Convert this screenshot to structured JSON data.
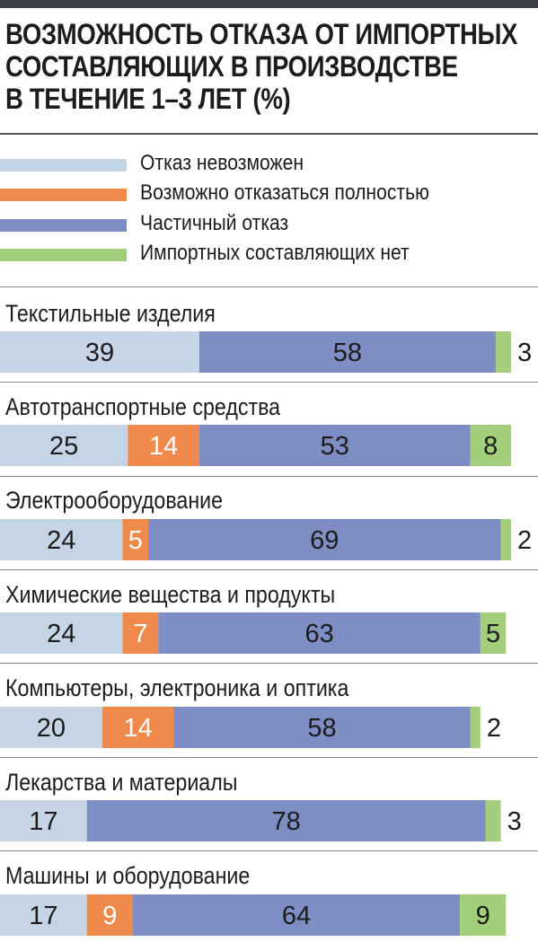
{
  "title": {
    "line1": "ВОЗМОЖНОСТЬ ОТКАЗА ОТ ИМПОРТНЫХ",
    "line2": "СОСТАВЛЯЮЩИХ В ПРОИЗВОДСТВЕ",
    "line3": "В ТЕЧЕНИЕ 1–3 ЛЕТ (%)"
  },
  "colors": {
    "impossible": "#c5d5e6",
    "full": "#f08a4c",
    "partial": "#7e8dc3",
    "none": "#a3cf7c"
  },
  "chart_data": {
    "type": "bar",
    "orientation": "horizontal",
    "stacked": true,
    "title": "ВОЗМОЖНОСТЬ ОТКАЗА ОТ ИМПОРТНЫХ СОСТАВЛЯЮЩИХ В ПРОИЗВОДСТВЕ В ТЕЧЕНИЕ 1–3 ЛЕТ (%)",
    "legend_position": "top",
    "grid": false,
    "xlim": [
      0,
      100
    ],
    "categories": [
      "Текстильные изделия",
      "Автотранспортные средства",
      "Электрооборудование",
      "Химические вещества и продукты",
      "Компьютеры, электроника и оптика",
      "Лекарства и материалы",
      "Машины и оборудование"
    ],
    "series": [
      {
        "name": "Отказ невозможен",
        "key": "impossible",
        "values": [
          39,
          25,
          24,
          24,
          20,
          17,
          17
        ]
      },
      {
        "name": "Возможно отказаться полностью",
        "key": "full",
        "values": [
          0,
          14,
          5,
          7,
          14,
          0,
          9
        ]
      },
      {
        "name": "Частичный отказ",
        "key": "partial",
        "values": [
          58,
          53,
          69,
          63,
          58,
          78,
          64
        ]
      },
      {
        "name": "Импортных составляющих нет",
        "key": "none",
        "values": [
          3,
          8,
          2,
          5,
          2,
          3,
          9
        ]
      }
    ]
  }
}
